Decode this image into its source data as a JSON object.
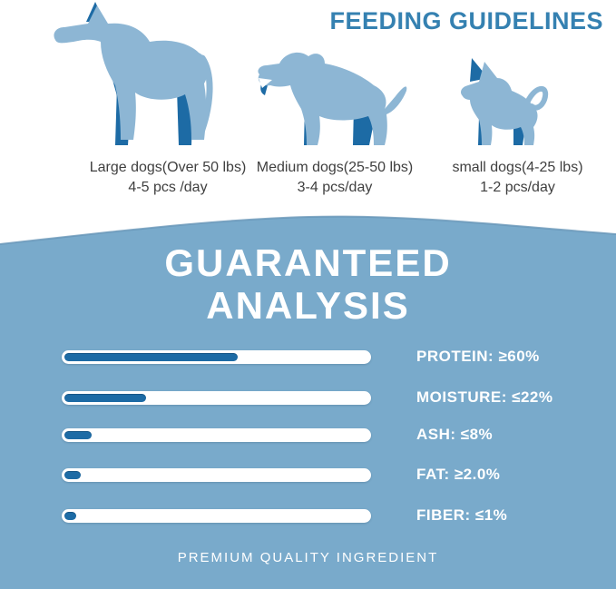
{
  "feeding": {
    "title": "FEEDING GUIDELINES",
    "groups": [
      {
        "icon": "large-dog-icon",
        "line1": "Large dogs(Over 50 lbs)",
        "line2": "4-5 pcs /day"
      },
      {
        "icon": "medium-dog-icon",
        "line1": "Medium dogs(25-50 lbs)",
        "line2": "3-4 pcs/day"
      },
      {
        "icon": "small-dog-icon",
        "line1": "small dogs(4-25 lbs)",
        "line2": "1-2 pcs/day"
      }
    ]
  },
  "analysis": {
    "title_line1": "GUARANTEED",
    "title_line2": "ANALYSIS",
    "rows": [
      {
        "label": "PROTEIN: ≥60%",
        "fill_percent": 57
      },
      {
        "label": "MOISTURE: ≤22%",
        "fill_percent": 27
      },
      {
        "label": "ASH: ≤8%",
        "fill_percent": 9
      },
      {
        "label": "FAT: ≥2.0%",
        "fill_percent": 5.5
      },
      {
        "label": "FIBER: ≤1%",
        "fill_percent": 4
      }
    ],
    "footer": "PREMIUM QUALITY INGREDIENT"
  },
  "chart_data": {
    "type": "bar",
    "orientation": "horizontal",
    "title": "GUARANTEED ANALYSIS",
    "categories": [
      "PROTEIN",
      "MOISTURE",
      "ASH",
      "FAT",
      "FIBER"
    ],
    "values": [
      60,
      22,
      8,
      2.0,
      1
    ],
    "value_qualifiers": [
      "≥",
      "≤",
      "≤",
      "≥",
      "≤"
    ],
    "displayed_fill_percent": [
      57,
      27,
      9,
      5.5,
      4
    ],
    "track_color": "#ffffff",
    "fill_color": "#1d6ba5"
  },
  "colors": {
    "section_blue": "#79aacb",
    "heading_blue": "#3581b1",
    "dog_light_blue": "#8db6d4",
    "dog_dark_blue": "#1d6ba5",
    "caption_gray": "#3f3f3f",
    "white": "#ffffff"
  }
}
